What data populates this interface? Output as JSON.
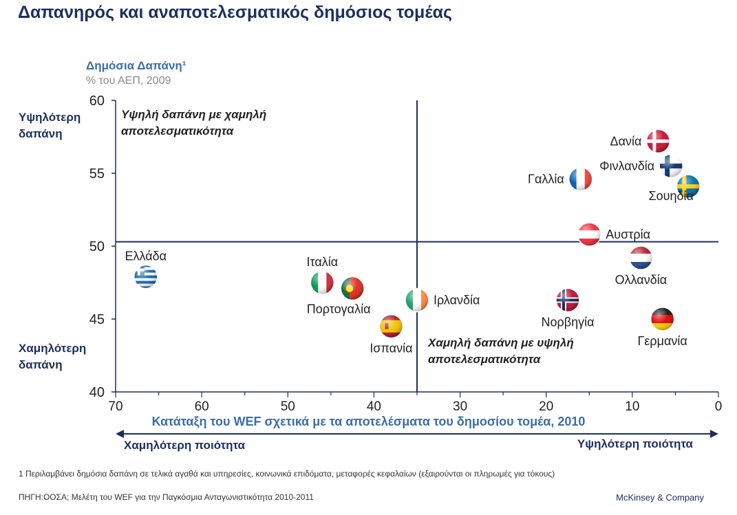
{
  "title": "Δαπανηρός και αναποτελεσματικός δημόσιος τομέας",
  "y_axis": {
    "label": "Δημόσια Δαπάνη¹",
    "sublabel": "% του ΑΕΠ, 2009",
    "high_label": "Υψηλότερη δαπάνη",
    "low_label": "Χαμηλότερη δαπάνη"
  },
  "quadrants": {
    "top_left": "Υψηλή δαπάνη με χαμηλή αποτελεσματικότητα",
    "bottom_right": "Χαμηλή δαπάνη με υψηλή αποτελεσματικότητα"
  },
  "x_axis": {
    "title": "Κατάταξη του WEF σχετικά με τα αποτελέσματα του δημοσίου τομέα, 2010",
    "left_label": "Χαμηλότερη ποιότητα",
    "right_label": "Υψηλότερη ποιότητα"
  },
  "footnote": "1 Περιλαμβάνει δημόσια δαπάνη σε τελικά αγαθά και υπηρεσίες, κοινωνικά επιδόματα, μεταφορές κεφαλαίων (εξαιρούνται οι πληρωμές για τόκους)",
  "source": "ΠΗΓΗ:ΟΟΣΑ; Μελέτη του WEF για την Παγκόσμια Ανταγωνιστικότητα 2010-2011",
  "brand": "McKinsey & Company",
  "colors": {
    "navy": "#1c2f5e",
    "accent_blue": "#3b6ea5",
    "gray": "#8a8a8a"
  },
  "chart_data": {
    "type": "scatter",
    "xlim": [
      70,
      0
    ],
    "ylim": [
      40,
      60
    ],
    "x_ticks": [
      70,
      60,
      50,
      40,
      30,
      20,
      10,
      0
    ],
    "y_ticks": [
      40,
      45,
      50,
      55,
      60
    ],
    "reference_lines": {
      "x": 35,
      "y": 50.3
    },
    "grid": false,
    "points": [
      {
        "label": "Ελλάδα",
        "x": 66.5,
        "y": 47.9,
        "flag": "greece",
        "label_pos": "above"
      },
      {
        "label": "Ιταλία",
        "x": 46,
        "y": 47.5,
        "flag": "italy",
        "label_pos": "above"
      },
      {
        "label": "Πορτογαλία",
        "x": 42.5,
        "y": 47.1,
        "flag": "portugal",
        "label_pos": "below-left"
      },
      {
        "label": "Ισπανία",
        "x": 38,
        "y": 44.5,
        "flag": "spain",
        "label_pos": "below"
      },
      {
        "label": "Ιρλανδία",
        "x": 35,
        "y": 46.3,
        "flag": "ireland",
        "label_pos": "right"
      },
      {
        "label": "Γαλλία",
        "x": 16,
        "y": 54.6,
        "flag": "france",
        "label_pos": "left"
      },
      {
        "label": "Αυστρία",
        "x": 15,
        "y": 50.8,
        "flag": "austria",
        "label_pos": "right"
      },
      {
        "label": "Νορβηγία",
        "x": 17.5,
        "y": 46.3,
        "flag": "norway",
        "label_pos": "below"
      },
      {
        "label": "Ολλανδία",
        "x": 9,
        "y": 49.2,
        "flag": "netherlands",
        "label_pos": "below"
      },
      {
        "label": "Δανία",
        "x": 7,
        "y": 57.2,
        "flag": "denmark",
        "label_pos": "left"
      },
      {
        "label": "Φινλανδία",
        "x": 5.5,
        "y": 55.5,
        "flag": "finland",
        "label_pos": "left"
      },
      {
        "label": "Σουηδία",
        "x": 3.5,
        "y": 54.1,
        "flag": "sweden",
        "label_pos": "below-left"
      },
      {
        "label": "Γερμανία",
        "x": 6.5,
        "y": 45,
        "flag": "germany",
        "label_pos": "below"
      }
    ]
  }
}
